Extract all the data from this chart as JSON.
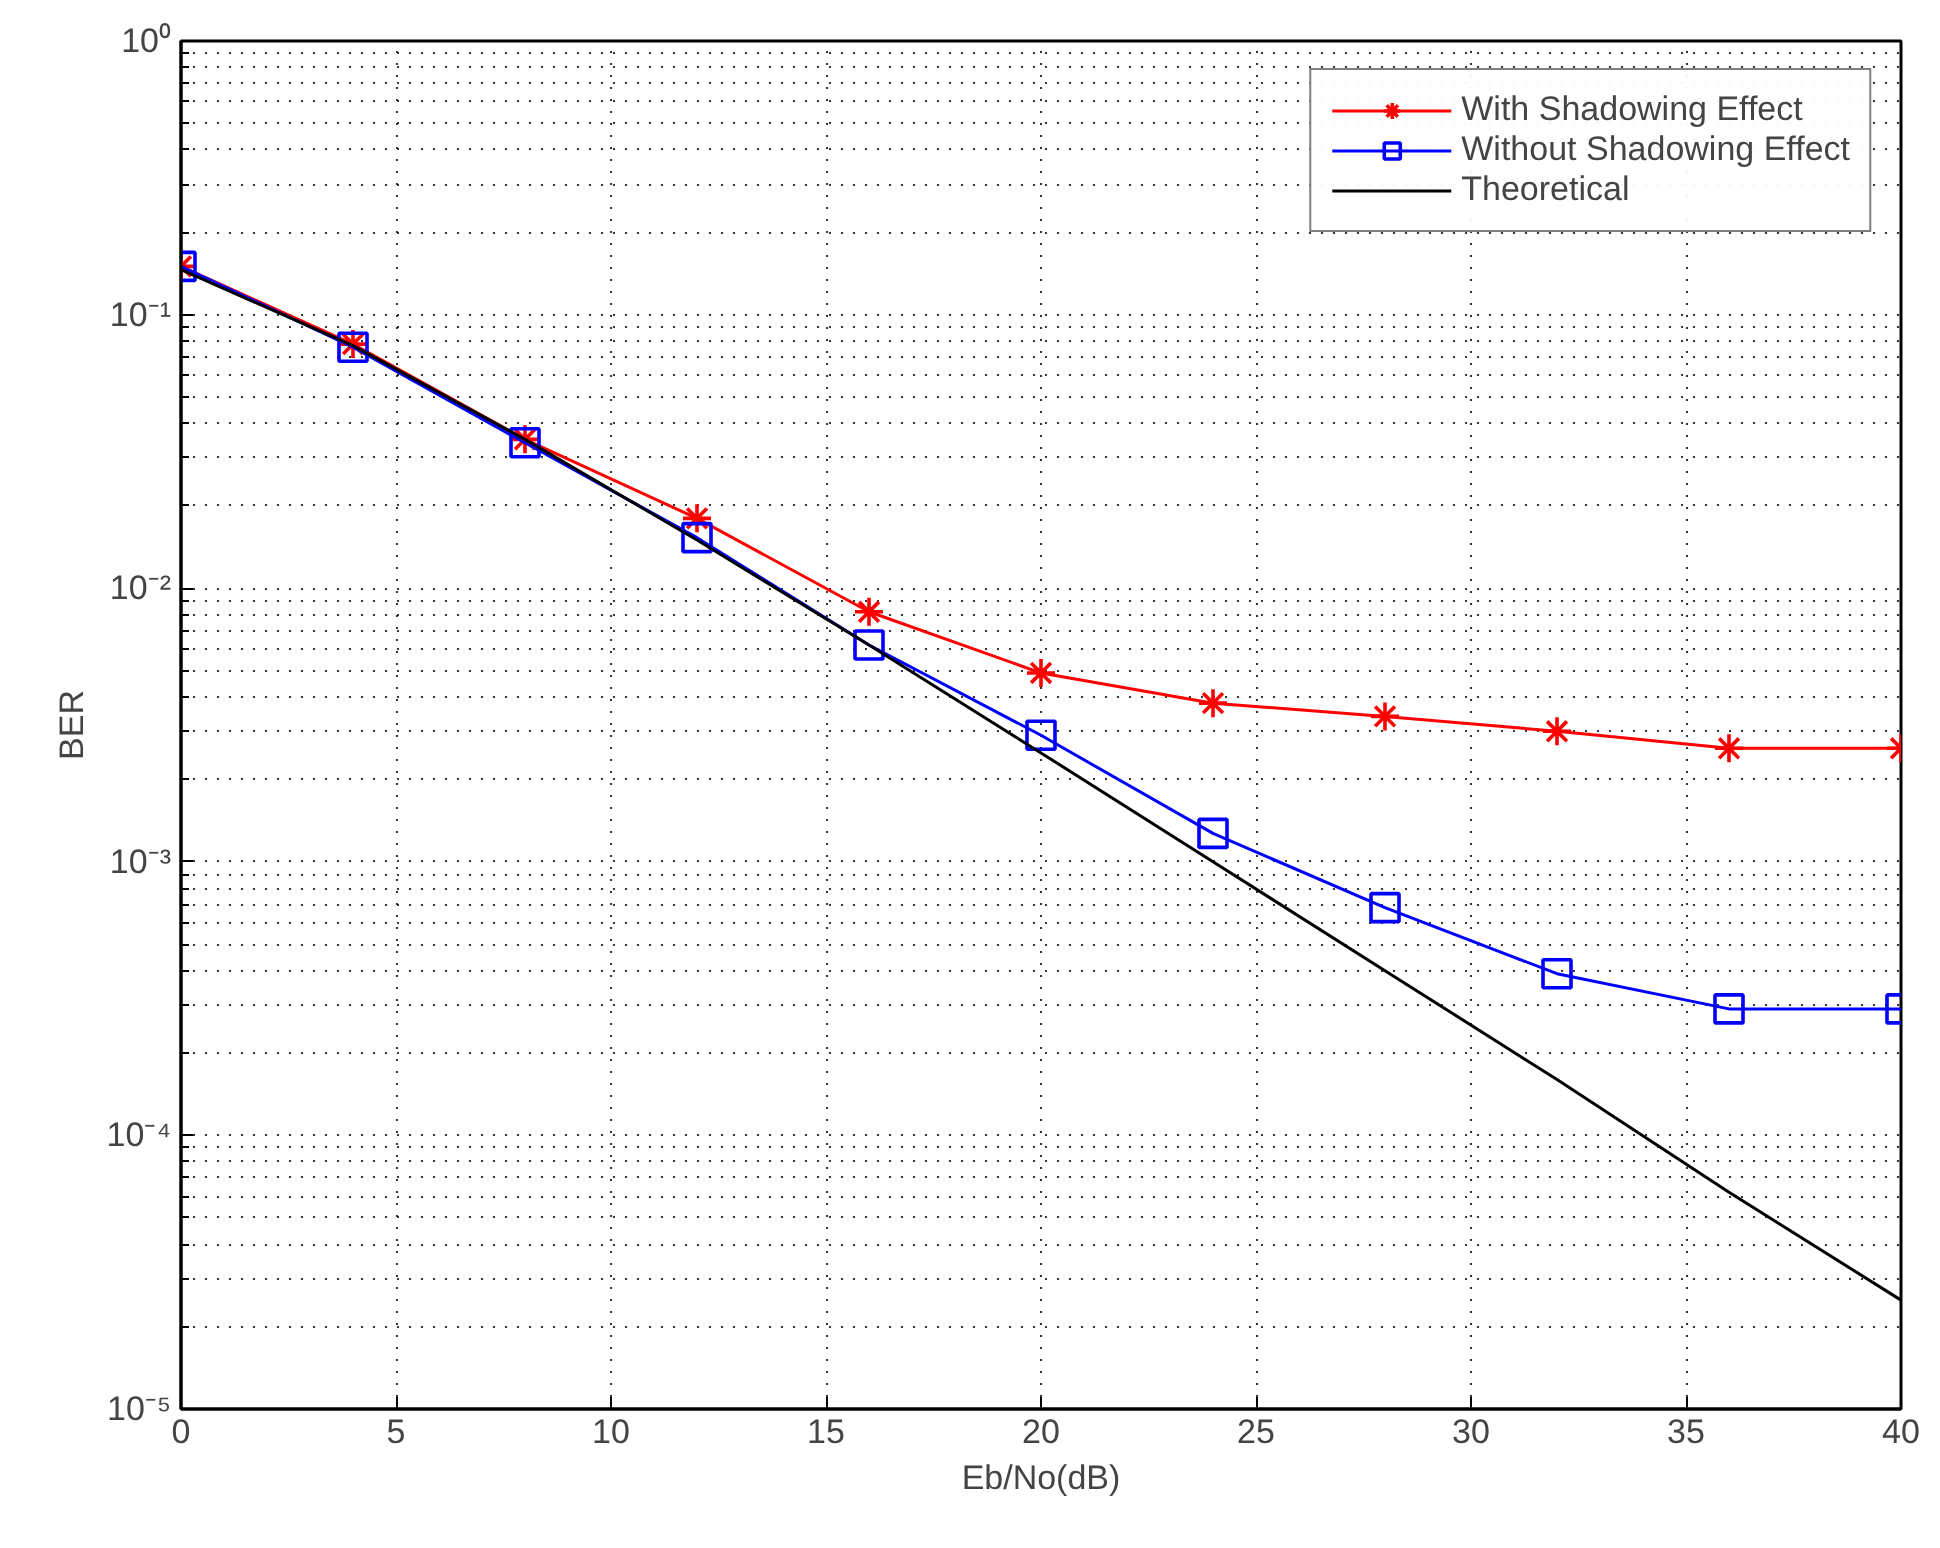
{
  "chart_data": {
    "type": "line",
    "xlabel": "Eb/No(dB)",
    "ylabel": "BER",
    "x": [
      0,
      4,
      8,
      12,
      16,
      20,
      24,
      28,
      32,
      36,
      40
    ],
    "series": [
      {
        "name": "With Shadowing Effect",
        "color": "#ff0000",
        "marker": "cross",
        "values": [
          0.15,
          0.078,
          0.035,
          0.018,
          0.0082,
          0.0049,
          0.0038,
          0.0034,
          0.003,
          0.0026,
          0.0026
        ]
      },
      {
        "name": "Without Shadowing Effect",
        "color": "#0000ff",
        "marker": "square",
        "values": [
          0.15,
          0.076,
          0.034,
          0.0153,
          0.0062,
          0.0029,
          0.00127,
          0.00068,
          0.00039,
          0.00029,
          0.00029
        ]
      },
      {
        "name": "Theoretical",
        "color": "#000000",
        "marker": "none",
        "values": [
          0.146,
          0.077,
          0.035,
          0.015,
          0.0062,
          0.0025,
          0.001,
          0.0004,
          0.00016,
          6.2e-05,
          2.5e-05
        ]
      }
    ],
    "log": "y",
    "xlim": [
      0,
      40
    ],
    "xticks": [
      0,
      5,
      10,
      15,
      20,
      25,
      30,
      35,
      40
    ],
    "ylim": [
      1e-05,
      1
    ],
    "yticks": [
      {
        "value": 1e-05,
        "label": "10⁻⁵"
      },
      {
        "value": 0.0001,
        "label": "10⁻⁴"
      },
      {
        "value": 0.001,
        "label": "10⁻³"
      },
      {
        "value": 0.01,
        "label": "10⁻²"
      },
      {
        "value": 0.1,
        "label": "10⁻¹"
      },
      {
        "value": 1,
        "label": "10⁰"
      }
    ],
    "grid": true,
    "legend": "top right",
    "line_style": "solid"
  }
}
